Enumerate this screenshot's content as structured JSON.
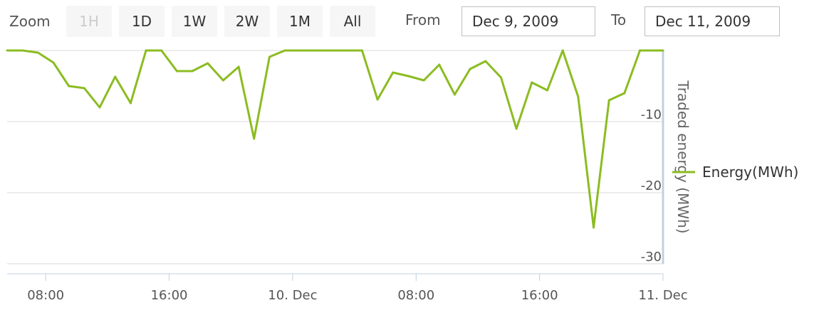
{
  "toolbar": {
    "zoom_label": "Zoom",
    "buttons": [
      {
        "label": "1H",
        "disabled": true
      },
      {
        "label": "1D",
        "disabled": false
      },
      {
        "label": "1W",
        "disabled": false
      },
      {
        "label": "2W",
        "disabled": false
      },
      {
        "label": "1M",
        "disabled": false
      },
      {
        "label": "All",
        "disabled": false
      }
    ],
    "from_label": "From",
    "from_value": "Dec 9, 2009",
    "to_label": "To",
    "to_value": "Dec 11, 2009"
  },
  "chart_data": {
    "type": "line",
    "title": "",
    "xlabel": "",
    "ylabel": "Traded energy (MWh)",
    "x_range": [
      "2009-12-09 05:30",
      "2009-12-11 00:00"
    ],
    "x_unit": "hours since 2009-12-09 00:00",
    "ylim": [
      -30,
      0
    ],
    "y_ticks": [
      -10,
      -20,
      -30
    ],
    "y_tick_labels": [
      "-10",
      "-20",
      "-30"
    ],
    "x_ticks": [
      8,
      16,
      24,
      32,
      40,
      48
    ],
    "x_tick_labels": [
      "08:00",
      "16:00",
      "10. Dec",
      "08:00",
      "16:00",
      "11. Dec"
    ],
    "grid": true,
    "legend_position": "right",
    "color": "#8bbc21",
    "series": [
      {
        "name": "Energy(MWh)",
        "x": [
          5.5,
          6.5,
          7.5,
          8.5,
          9.5,
          10.5,
          11.5,
          12.5,
          13.5,
          14.5,
          15.5,
          16.5,
          17.5,
          18.5,
          19.5,
          20.5,
          21.5,
          22.5,
          23.5,
          24.5,
          25.5,
          26.5,
          27.5,
          28.5,
          29.5,
          30.5,
          31.5,
          32.5,
          33.5,
          34.5,
          35.5,
          36.5,
          37.5,
          38.5,
          39.5,
          40.5,
          41.5,
          42.5,
          43.5,
          44.5,
          45.5,
          46.5,
          47.5,
          48.0
        ],
        "y": [
          0,
          0,
          -0.3,
          -1.7,
          -5.0,
          -5.3,
          -8.0,
          -3.7,
          -7.4,
          0,
          0,
          -2.9,
          -2.9,
          -1.8,
          -4.2,
          -2.3,
          -12.4,
          -0.9,
          0,
          0,
          0,
          0,
          0,
          0,
          -6.9,
          -3.1,
          -3.6,
          -4.2,
          -2.0,
          -6.2,
          -2.6,
          -1.5,
          -3.8,
          -11.0,
          -4.5,
          -5.6,
          0,
          -6.5,
          -24.9,
          -7.0,
          -6.0,
          0,
          0,
          0
        ]
      }
    ]
  }
}
